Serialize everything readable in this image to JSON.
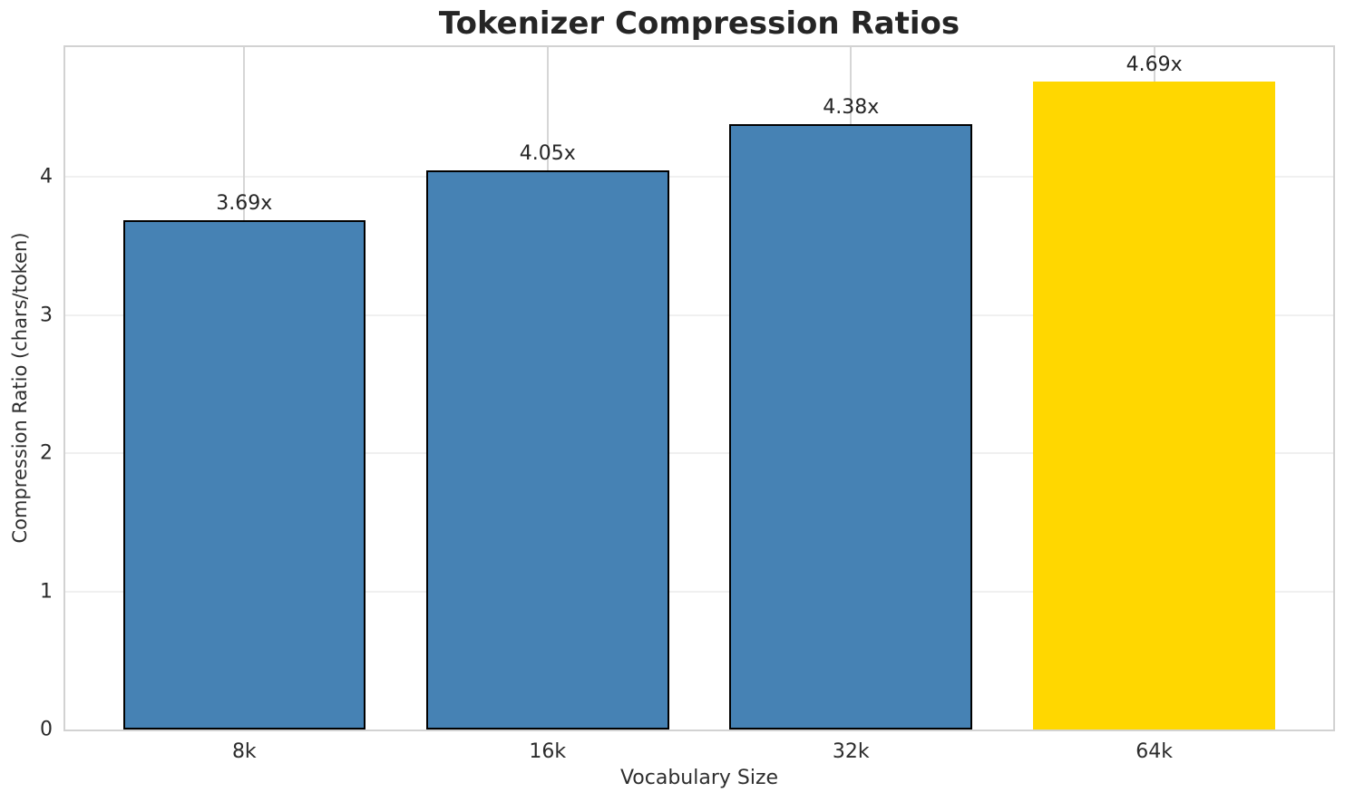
{
  "chart_data": {
    "type": "bar",
    "title": "Tokenizer Compression Ratios",
    "xlabel": "Vocabulary Size",
    "ylabel": "Compression Ratio (chars/token)",
    "categories": [
      "8k",
      "16k",
      "32k",
      "64k"
    ],
    "values": [
      3.69,
      4.05,
      4.38,
      4.69
    ],
    "value_labels": [
      "3.69x",
      "4.05x",
      "4.38x",
      "4.69x"
    ],
    "bar_colors": [
      "#4682B4",
      "#4682B4",
      "#4682B4",
      "#FFD700"
    ],
    "bar_edge_colors": [
      "#000000",
      "#000000",
      "#000000",
      "none"
    ],
    "highlight_index": 3,
    "ylim": [
      0,
      4.94
    ],
    "yticks": [
      0,
      1,
      2,
      3,
      4
    ],
    "ytick_labels": [
      "0",
      "1",
      "2",
      "3",
      "4"
    ],
    "xlim": [
      -0.59,
      3.59
    ],
    "bar_width": 0.8,
    "grid": true,
    "legend": null,
    "colors": {
      "grid_horizontal": "#f0f0f0",
      "grid_vertical": "#d6d6d6",
      "spine": "#d2d2d2",
      "text": "#262626",
      "bar_edge": "#000000"
    }
  }
}
